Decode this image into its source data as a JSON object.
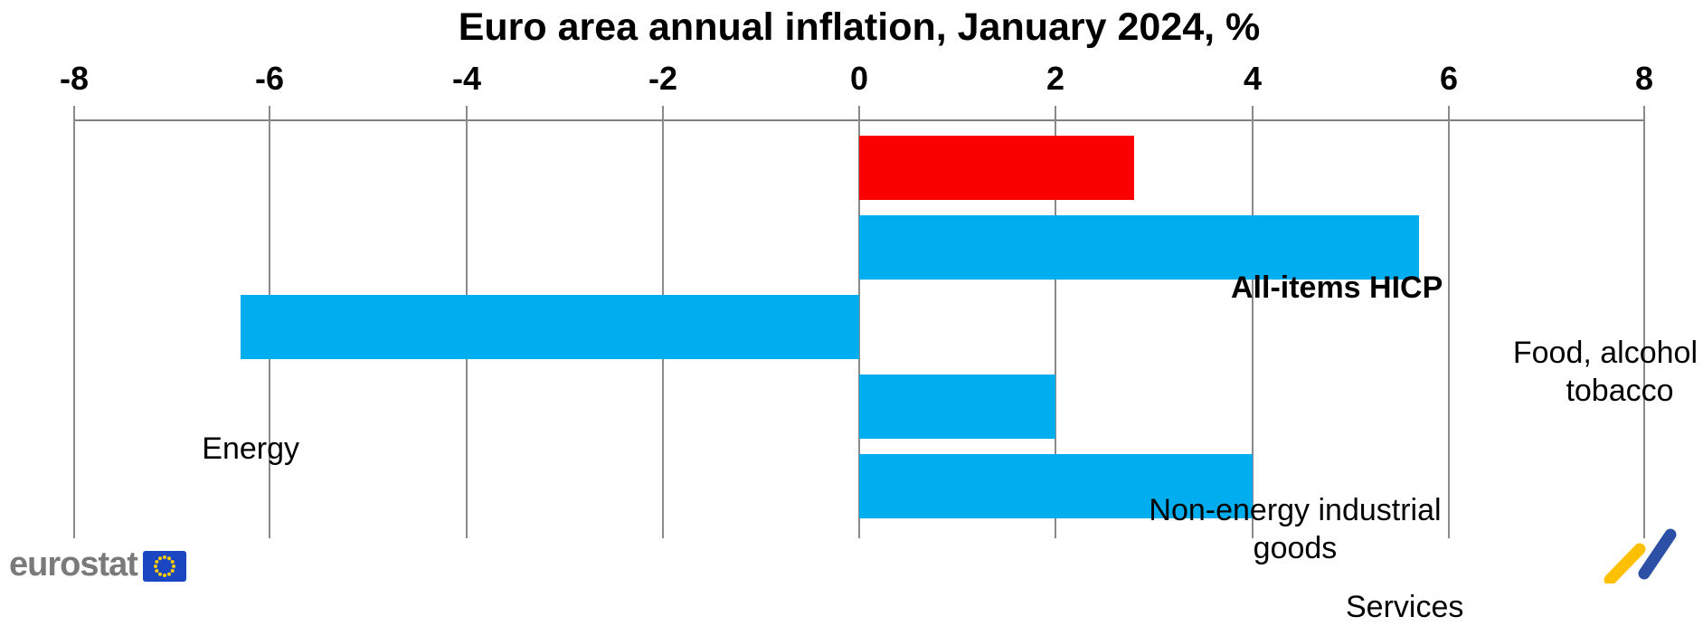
{
  "title": "Euro area annual inflation, January 2024, %",
  "chart_data": {
    "type": "bar",
    "orientation": "horizontal",
    "title": "Euro area annual inflation, January 2024, %",
    "xlabel": "",
    "ylabel": "",
    "xlim": [
      -8,
      8
    ],
    "xticks": [
      -8,
      -6,
      -4,
      -2,
      0,
      2,
      4,
      6,
      8
    ],
    "grid": "vertical",
    "axis_position": "top",
    "categories": [
      "All-items HICP",
      "Food, alcohol & tobacco",
      "Energy",
      "Non-energy industrial goods",
      "Services"
    ],
    "values": [
      2.8,
      5.7,
      -6.3,
      2.0,
      4.0
    ],
    "bars": [
      {
        "label": "All-items HICP",
        "label_lines": [
          "All-items HICP"
        ],
        "value": 2.8,
        "color": "#fa0000",
        "emphasis": true
      },
      {
        "label": "Food, alcohol & tobacco",
        "label_lines": [
          "Food, alcohol &",
          "tobacco"
        ],
        "value": 5.7,
        "color": "#00aeef",
        "emphasis": false
      },
      {
        "label": "Energy",
        "label_lines": [
          "Energy"
        ],
        "value": -6.3,
        "color": "#00aeef",
        "emphasis": false
      },
      {
        "label": "Non-energy industrial goods",
        "label_lines": [
          "Non-energy industrial",
          "goods"
        ],
        "value": 2.0,
        "color": "#00aeef",
        "emphasis": false
      },
      {
        "label": "Services",
        "label_lines": [
          "Services"
        ],
        "value": 4.0,
        "color": "#00aeef",
        "emphasis": false
      }
    ],
    "colors": {
      "highlight_bar": "#fa0000",
      "default_bar": "#00aeef",
      "gridline": "#8a8a8a"
    }
  },
  "footer": {
    "eurostat_label": "eurostat"
  },
  "logo_colors": {
    "eu_flag_blue": "#1b46c2",
    "eu_star_yellow": "#ffcc00",
    "zigzag_yellow": "#ffc000",
    "zigzag_blue": "#2d50a7"
  }
}
